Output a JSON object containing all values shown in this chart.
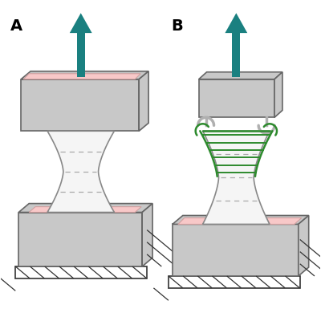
{
  "bg_color": "#ffffff",
  "arrow_color": "#1a8080",
  "gray_light": "#c8c8c8",
  "gray_mid": "#b0b0b0",
  "pink_color": "#f8c8c8",
  "tendon_color": "#f5f5f5",
  "tendon_outline": "#888888",
  "green_suture": "#2d8a2d",
  "hatch_color": "#333333",
  "edge_color": "#666666"
}
